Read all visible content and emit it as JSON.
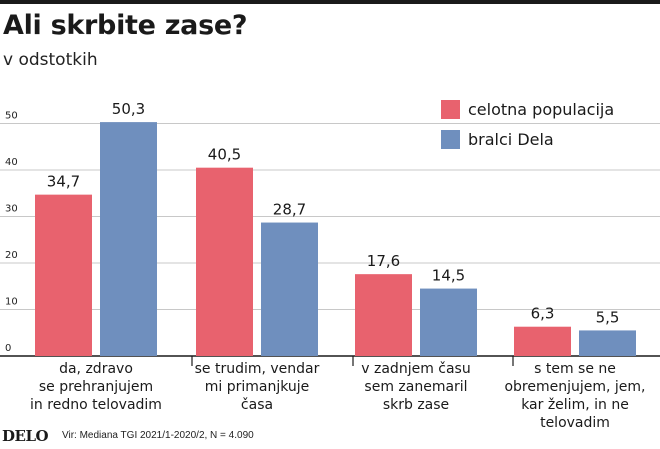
{
  "title": "Ali skrbite zase?",
  "subtitle": "v odstotkih",
  "footer": {
    "logo": "DELO",
    "source": "Vir: Mediana TGI 2021/1-2020/2,  N = 4.090"
  },
  "chart_data": {
    "type": "bar",
    "categories": [
      [
        "da, zdravo",
        "se prehranjujem",
        "in redno telovadim"
      ],
      [
        "se trudim, vendar",
        "mi primanjkuje",
        "časa"
      ],
      [
        "v zadnjem času",
        "sem zanemaril",
        "skrb zase"
      ],
      [
        "s tem se ne",
        "obremenjujem, jem,",
        "kar želim, in ne",
        "telovadim"
      ]
    ],
    "series": [
      {
        "name": "celotna populacija",
        "color": "#e8626e",
        "values": [
          34.7,
          40.5,
          17.6,
          6.3
        ],
        "labels": [
          "34,7",
          "40,5",
          "17,6",
          "6,3"
        ]
      },
      {
        "name": "bralci Dela",
        "color": "#6f8fbe",
        "values": [
          50.3,
          28.7,
          14.5,
          5.5
        ],
        "labels": [
          "50,3",
          "28,7",
          "14,5",
          "5,5"
        ]
      }
    ],
    "yticks": [
      0,
      10,
      20,
      30,
      40,
      50
    ],
    "ylim": [
      0,
      50
    ],
    "grid": true,
    "legend": "top-right"
  }
}
